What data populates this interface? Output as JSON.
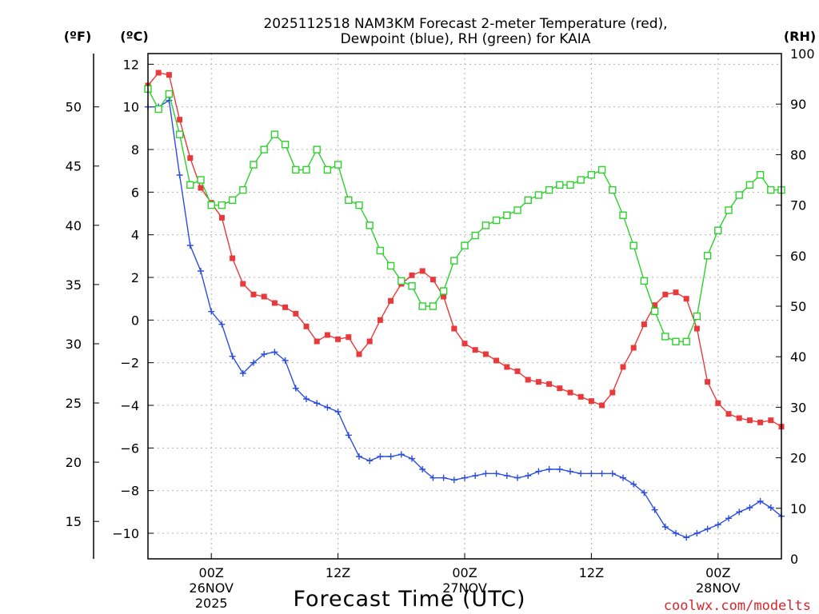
{
  "chart_data": {
    "type": "line",
    "title_line1": "2025112518 NAM3KM Forecast 2-meter Temperature (red),",
    "title_line2": "Dewpoint (blue), RH (green) for KAIA",
    "xlabel": "Forecast Time (UTC)",
    "credit": "coolwx.com/modelts",
    "units": {
      "fahrenheit": "(ºF)",
      "celsius": "(ºC)",
      "rh": "(RH)"
    },
    "x_range_hours": [
      -6,
      54
    ],
    "ylim_celsius": [
      -11.2,
      12.5
    ],
    "ylim_rh": [
      0,
      100
    ],
    "y_ticks_celsius": [
      12,
      10,
      8,
      6,
      4,
      2,
      0,
      -2,
      -4,
      -6,
      -8,
      -10
    ],
    "y_ticks_celsius_labels": [
      "12",
      "10",
      "8",
      "6",
      "4",
      "2",
      "0",
      "−2",
      "−4",
      "−6",
      "−8",
      "−10"
    ],
    "y_ticks_fahrenheit": [
      50,
      45,
      40,
      35,
      30,
      25,
      20,
      15
    ],
    "y_ticks_fahrenheit_labels": [
      "50",
      "45",
      "40",
      "35",
      "30",
      "25",
      "20",
      "15"
    ],
    "y_ticks_rh": [
      100,
      90,
      80,
      70,
      60,
      50,
      40,
      30,
      20,
      10,
      0
    ],
    "y_ticks_rh_labels": [
      "100",
      "90",
      "80",
      "70",
      "60",
      "50",
      "40",
      "30",
      "20",
      "10",
      "0"
    ],
    "x_ticks": [
      {
        "hour": 0,
        "lines": [
          "00Z",
          "26NOV",
          "2025"
        ]
      },
      {
        "hour": 12,
        "lines": [
          "12Z"
        ]
      },
      {
        "hour": 24,
        "lines": [
          "00Z",
          "27NOV"
        ]
      },
      {
        "hour": 36,
        "lines": [
          "12Z"
        ]
      },
      {
        "hour": 48,
        "lines": [
          "00Z",
          "28NOV"
        ]
      }
    ],
    "series": [
      {
        "name": "Temperature",
        "color": "#e8393b",
        "marker": "filled-square",
        "axis": "celsius",
        "x": [
          -6,
          -5,
          -4,
          -3,
          -2,
          -1,
          0,
          1,
          2,
          3,
          4,
          5,
          6,
          7,
          8,
          9,
          10,
          11,
          12,
          13,
          14,
          15,
          16,
          17,
          18,
          19,
          20,
          21,
          22,
          23,
          24,
          25,
          26,
          27,
          28,
          29,
          30,
          31,
          32,
          33,
          34,
          35,
          36,
          37,
          38,
          39,
          40,
          41,
          42,
          43,
          44,
          45,
          46,
          47,
          48,
          49,
          50,
          51,
          52,
          53,
          54
        ],
        "values": [
          11.0,
          11.6,
          11.5,
          9.4,
          7.6,
          6.2,
          5.5,
          4.8,
          2.9,
          1.7,
          1.2,
          1.1,
          0.8,
          0.6,
          0.3,
          -0.3,
          -1.0,
          -0.7,
          -0.9,
          -0.8,
          -1.6,
          -1.0,
          0.0,
          0.9,
          1.7,
          2.1,
          2.3,
          1.9,
          1.1,
          -0.4,
          -1.1,
          -1.4,
          -1.6,
          -1.9,
          -2.2,
          -2.4,
          -2.8,
          -2.9,
          -3.0,
          -3.2,
          -3.4,
          -3.6,
          -3.8,
          -4.0,
          -3.4,
          -2.2,
          -1.3,
          -0.2,
          0.7,
          1.2,
          1.3,
          1.0,
          -0.4,
          -2.9,
          -3.9,
          -4.4,
          -4.6,
          -4.7,
          -4.8,
          -4.7,
          -5.0
        ]
      },
      {
        "name": "Dewpoint",
        "color": "#2b4ee0",
        "marker": "plus",
        "axis": "celsius",
        "x": [
          -6,
          -5,
          -4,
          -3,
          -2,
          -1,
          0,
          1,
          2,
          3,
          4,
          5,
          6,
          7,
          8,
          9,
          10,
          11,
          12,
          13,
          14,
          15,
          16,
          17,
          18,
          19,
          20,
          21,
          22,
          23,
          24,
          25,
          26,
          27,
          28,
          29,
          30,
          31,
          32,
          33,
          34,
          35,
          36,
          37,
          38,
          39,
          40,
          41,
          42,
          43,
          44,
          45,
          46,
          47,
          48,
          49,
          50,
          51,
          52,
          53,
          54
        ],
        "values": [
          10.0,
          10.0,
          10.3,
          6.8,
          3.5,
          2.3,
          0.4,
          -0.2,
          -1.7,
          -2.5,
          -2.0,
          -1.6,
          -1.5,
          -1.9,
          -3.2,
          -3.7,
          -3.9,
          -4.1,
          -4.3,
          -5.4,
          -6.4,
          -6.6,
          -6.4,
          -6.4,
          -6.3,
          -6.5,
          -7.0,
          -7.4,
          -7.4,
          -7.5,
          -7.4,
          -7.3,
          -7.2,
          -7.2,
          -7.3,
          -7.4,
          -7.3,
          -7.1,
          -7.0,
          -7.0,
          -7.1,
          -7.2,
          -7.2,
          -7.2,
          -7.2,
          -7.4,
          -7.7,
          -8.1,
          -8.9,
          -9.7,
          -10.0,
          -10.2,
          -10.0,
          -9.8,
          -9.6,
          -9.3,
          -9.0,
          -8.8,
          -8.5,
          -8.8,
          -9.2
        ]
      },
      {
        "name": "RH",
        "color": "#2ed02e",
        "marker": "open-square",
        "axis": "rh",
        "x": [
          -6,
          -5,
          -4,
          -3,
          -2,
          -1,
          0,
          1,
          2,
          3,
          4,
          5,
          6,
          7,
          8,
          9,
          10,
          11,
          12,
          13,
          14,
          15,
          16,
          17,
          18,
          19,
          20,
          21,
          22,
          23,
          24,
          25,
          26,
          27,
          28,
          29,
          30,
          31,
          32,
          33,
          34,
          35,
          36,
          37,
          38,
          39,
          40,
          41,
          42,
          43,
          44,
          45,
          46,
          47,
          48,
          49,
          50,
          51,
          52,
          53,
          54
        ],
        "values": [
          93,
          89,
          92,
          84,
          74,
          75,
          70,
          70,
          71,
          73,
          78,
          81,
          84,
          82,
          77,
          77,
          81,
          77,
          78,
          71,
          70,
          66,
          61,
          58,
          55,
          54,
          50,
          50,
          53,
          59,
          62,
          64,
          66,
          67,
          68,
          69,
          71,
          72,
          73,
          74,
          74,
          75,
          76,
          77,
          73,
          68,
          62,
          55,
          49,
          44,
          43,
          43,
          48,
          60,
          65,
          69,
          72,
          74,
          76,
          73,
          73
        ]
      }
    ]
  }
}
